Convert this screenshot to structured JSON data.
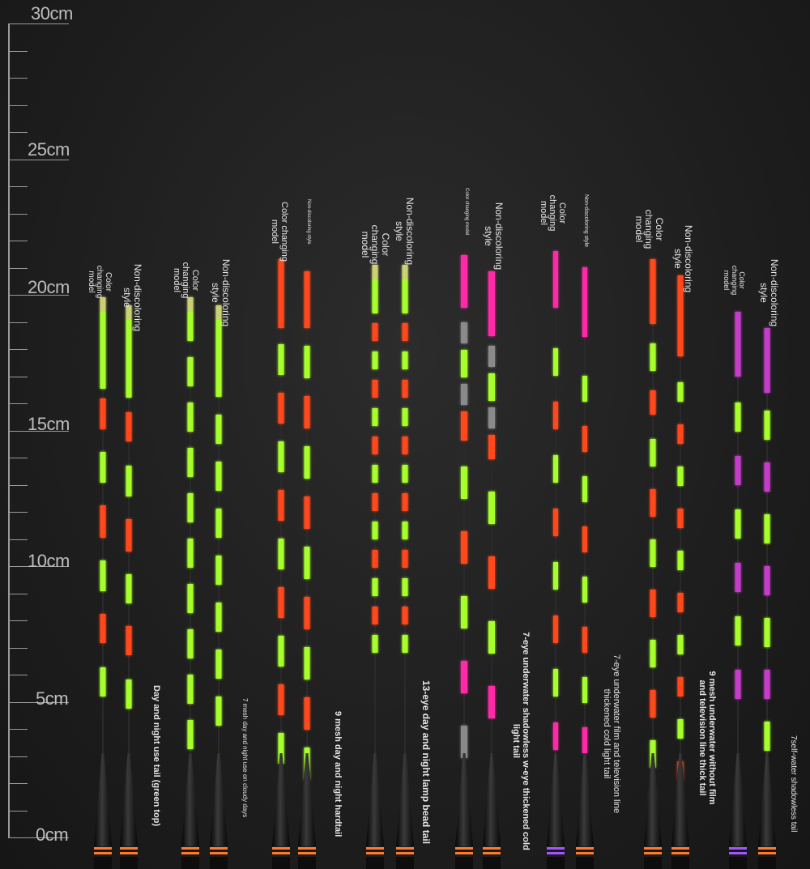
{
  "ruler": {
    "labels": [
      "30cm",
      "25cm",
      "20cm",
      "15cm",
      "10cm",
      "5cm",
      "0cm"
    ],
    "min_cm": 0,
    "max_cm": 30
  },
  "colors": {
    "green": "#a6ff2a",
    "orange": "#ff4a1c",
    "magenta": "#ff2aa8",
    "purple": "#c43cc8",
    "gray": "#8a8a8a",
    "rod": "#1a1a1a",
    "ring_orange": "#ff7a2a",
    "ring_purple": "#a355ff"
  },
  "labels": {
    "color_changing_model": "Color changing model",
    "non_discoloring_style": "Non-discoloring style",
    "color_changing_model_sm": "Color changing model",
    "non_discoloring_style_sm": "Non-discoloring style",
    "color_changing": "Color changing",
    "model": "model",
    "non_discoloring": "Non-discoloring",
    "style": "style"
  },
  "groups": [
    {
      "caption": "Day and night use tail (green top)"
    },
    {
      "caption": "7 mesh day and night use on cloudy days"
    },
    {
      "caption": "9 mesh day and night hardtail"
    },
    {
      "caption": "13-eye day and night lamp bead tail"
    },
    {
      "caption": "7-eye underwater shadowless w-eye thickened cold light tail"
    },
    {
      "caption": "7-eye underwater film and television line thickened cold light tail"
    },
    {
      "caption": "9 mesh underwater without film and television line thick tail"
    },
    {
      "caption": "7self-water shadowless tail"
    }
  ]
}
